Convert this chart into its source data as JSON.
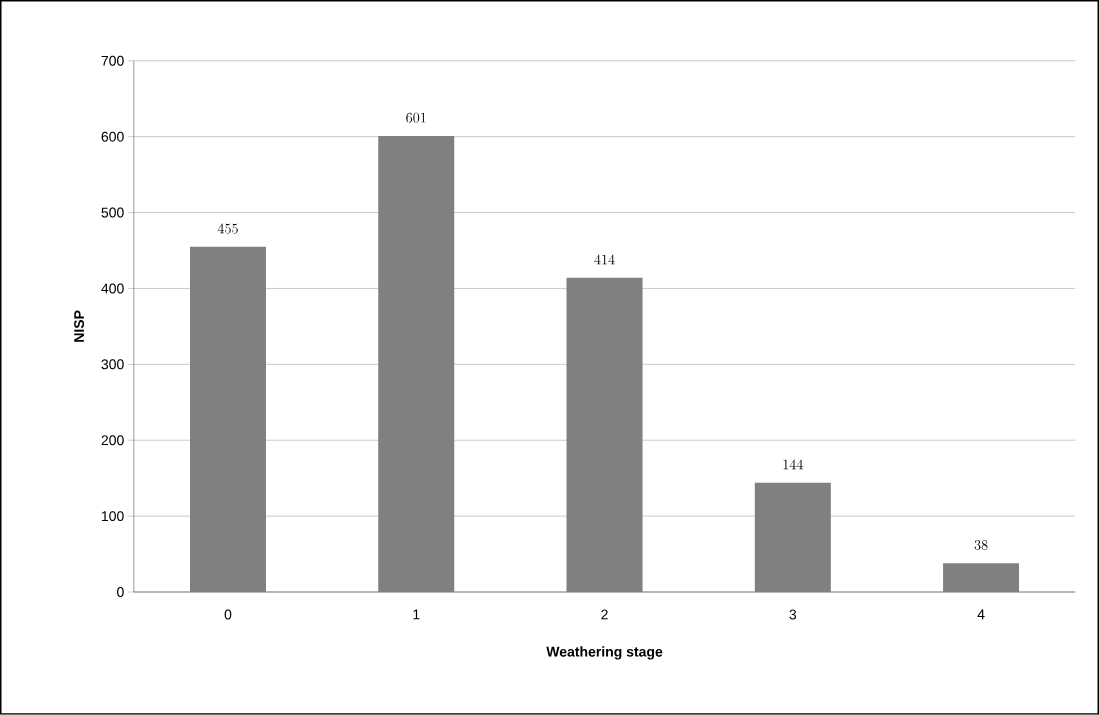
{
  "chart_data": {
    "type": "bar",
    "xlabel": "Weathering stage",
    "ylabel": "NISP",
    "categories": [
      "0",
      "1",
      "2",
      "3",
      "4"
    ],
    "values": [
      455,
      601,
      414,
      144,
      38
    ],
    "color": "#808080",
    "ylim": [
      0,
      700
    ],
    "yticks": [
      0,
      100,
      200,
      300,
      400,
      500,
      600,
      700
    ],
    "grid": "y",
    "data_labels": true
  }
}
